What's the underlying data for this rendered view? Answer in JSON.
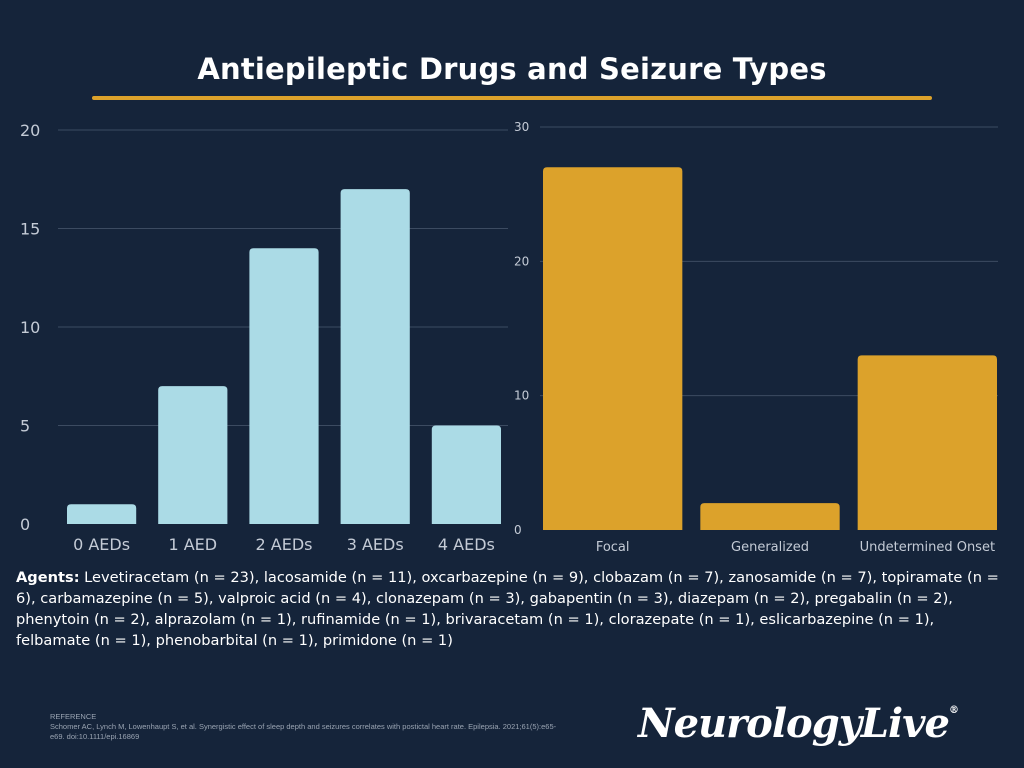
{
  "title": "Antiepileptic Drugs and Seizure Types",
  "colors": {
    "background": "#15243a",
    "accent": "#dca22b",
    "left_bars": "#abdbe6",
    "right_bars": "#dca22b"
  },
  "chart_data": [
    {
      "type": "bar",
      "title": "",
      "categories": [
        "0 AEDs",
        "1 AED",
        "2 AEDs",
        "3 AEDs",
        "4 AEDs"
      ],
      "values": [
        1,
        7,
        14,
        17,
        5
      ],
      "yticks": [
        0,
        5,
        10,
        15,
        20
      ],
      "ylim": [
        0,
        20
      ],
      "xlabel": "",
      "ylabel": "",
      "grid": true
    },
    {
      "type": "bar",
      "title": "",
      "categories": [
        "Focal",
        "Generalized",
        "Undetermined Onset"
      ],
      "values": [
        27,
        2,
        13
      ],
      "yticks": [
        0,
        10,
        20,
        30
      ],
      "ylim": [
        0,
        30
      ],
      "xlabel": "",
      "ylabel": "",
      "grid": true
    }
  ],
  "agents": {
    "label": "Agents:",
    "text": " Levetiracetam (n = 23), lacosamide (n = 11), oxcarbazepine (n = 9), clobazam (n = 7), zanosamide (n = 7), topiramate (n = 6), carbamazepine (n = 5), valproic acid (n = 4), clonazepam (n = 3), gabapentin (n = 3), diazepam (n = 2), pregabalin (n = 2), phenytoin (n = 2), alprazolam (n = 1), rufinamide (n = 1), brivaracetam (n = 1), clorazepate (n = 1), eslicarbazepine (n = 1), felbamate (n = 1), phenobarbital (n = 1), primidone (n = 1)"
  },
  "reference": {
    "label": "REFERENCE",
    "text": "Schomer AC, Lynch M, Lowenhaupt S, et al. Synergistic effect of sleep depth and seizures correlates with postictal heart rate. Epilepsia. 2021;61(5):e65-e69. doi:10.1111/epi.16869"
  },
  "logo": {
    "text": "NeurologyLive",
    "mark": "®"
  }
}
